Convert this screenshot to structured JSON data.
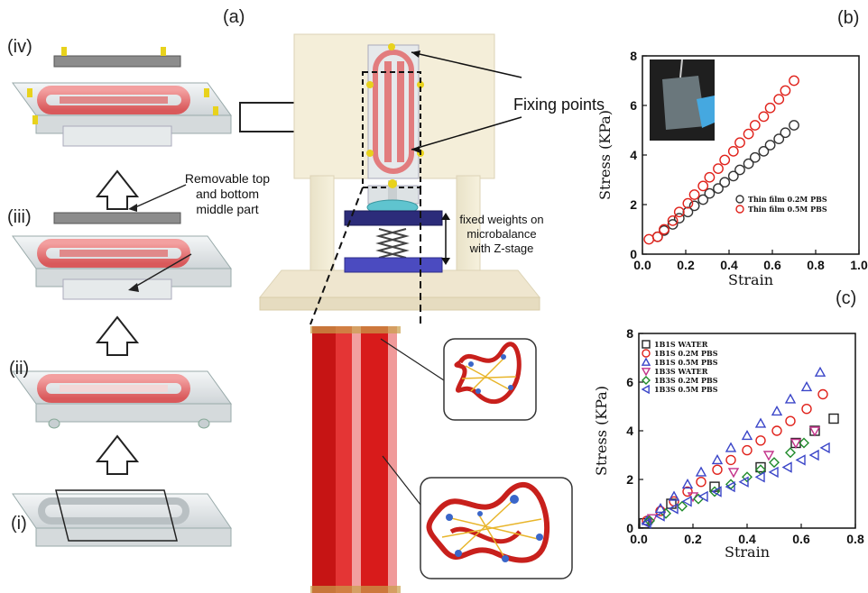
{
  "figure": {
    "panel_a": "(a)",
    "panel_b": "(b)",
    "panel_c": "(c)",
    "steps": [
      "(i)",
      "(ii)",
      "(iii)",
      "(iv)"
    ],
    "removable_note_1": "Removable top",
    "removable_note_2": "and bottom",
    "removable_note_3": "middle part",
    "fixing_points": "Fixing points",
    "weights_1": "fixed weights on",
    "weights_2": "microbalance",
    "weights_3": "with Z-stage"
  },
  "chart_data": [
    {
      "type": "scatter",
      "panel": "(b)",
      "xlabel": "Strain",
      "ylabel": "Stress (KPa)",
      "xlim": [
        0.0,
        1.0
      ],
      "ylim": [
        0,
        8
      ],
      "xticks": [
        "0.0",
        "0.2",
        "0.4",
        "0.6",
        "0.8",
        "1.0"
      ],
      "yticks": [
        "0",
        "2",
        "4",
        "6",
        "8"
      ],
      "legend_position": "bottom-right",
      "series": [
        {
          "name": "Thin film 0.2M PBS",
          "color": "#333333",
          "marker": "circle",
          "x": [
            0.07,
            0.1,
            0.14,
            0.17,
            0.21,
            0.24,
            0.28,
            0.31,
            0.35,
            0.38,
            0.42,
            0.45,
            0.49,
            0.52,
            0.56,
            0.59,
            0.63,
            0.66,
            0.7
          ],
          "y": [
            0.7,
            0.95,
            1.2,
            1.45,
            1.7,
            1.95,
            2.2,
            2.45,
            2.65,
            2.9,
            3.15,
            3.4,
            3.65,
            3.9,
            4.15,
            4.4,
            4.65,
            4.9,
            5.2
          ]
        },
        {
          "name": "Thin film 0.5M PBS",
          "color": "#e0221b",
          "marker": "circle",
          "x": [
            0.03,
            0.07,
            0.1,
            0.14,
            0.17,
            0.21,
            0.24,
            0.28,
            0.31,
            0.35,
            0.38,
            0.42,
            0.45,
            0.49,
            0.52,
            0.56,
            0.59,
            0.63,
            0.66,
            0.7
          ],
          "y": [
            0.6,
            0.7,
            1.0,
            1.35,
            1.7,
            2.05,
            2.4,
            2.75,
            3.1,
            3.45,
            3.8,
            4.15,
            4.5,
            4.85,
            5.2,
            5.55,
            5.9,
            6.25,
            6.6,
            7.0
          ]
        }
      ]
    },
    {
      "type": "scatter",
      "panel": "(c)",
      "xlabel": "Strain",
      "ylabel": "Stress (KPa)",
      "xlim": [
        0.0,
        0.8
      ],
      "ylim": [
        0,
        8
      ],
      "xticks": [
        "0.0",
        "0.2",
        "0.4",
        "0.6",
        "0.8"
      ],
      "yticks": [
        "0",
        "2",
        "4",
        "6",
        "8"
      ],
      "legend_position": "top-left",
      "series": [
        {
          "name": "1B1S WATER",
          "color": "#222222",
          "marker": "square",
          "x": [
            0.02,
            0.12,
            0.28,
            0.45,
            0.58,
            0.65,
            0.72
          ],
          "y": [
            0.2,
            1.0,
            1.7,
            2.5,
            3.5,
            4.0,
            4.5
          ]
        },
        {
          "name": "1B1S 0.2M PBS",
          "color": "#e0221b",
          "marker": "circle",
          "x": [
            0.03,
            0.08,
            0.13,
            0.18,
            0.23,
            0.29,
            0.34,
            0.4,
            0.45,
            0.51,
            0.56,
            0.62,
            0.68
          ],
          "y": [
            0.3,
            0.7,
            1.1,
            1.5,
            1.9,
            2.4,
            2.8,
            3.2,
            3.6,
            4.0,
            4.4,
            4.9,
            5.5
          ]
        },
        {
          "name": "1B1S 0.5M PBS",
          "color": "#3a45c8",
          "marker": "triangle-up",
          "x": [
            0.03,
            0.08,
            0.13,
            0.18,
            0.23,
            0.29,
            0.34,
            0.4,
            0.45,
            0.51,
            0.56,
            0.62,
            0.67
          ],
          "y": [
            0.3,
            0.8,
            1.3,
            1.8,
            2.3,
            2.8,
            3.3,
            3.8,
            4.3,
            4.8,
            5.3,
            5.8,
            6.4
          ]
        },
        {
          "name": "1B3S WATER",
          "color": "#c3338a",
          "marker": "triangle-down",
          "x": [
            0.05,
            0.2,
            0.35,
            0.48,
            0.58,
            0.65
          ],
          "y": [
            0.4,
            1.3,
            2.3,
            3.0,
            3.5,
            4.0
          ]
        },
        {
          "name": "1B3S 0.2M PBS",
          "color": "#1f8a2a",
          "marker": "diamond",
          "x": [
            0.04,
            0.1,
            0.16,
            0.22,
            0.28,
            0.34,
            0.4,
            0.45,
            0.5,
            0.56,
            0.61
          ],
          "y": [
            0.3,
            0.6,
            0.9,
            1.2,
            1.5,
            1.8,
            2.1,
            2.4,
            2.7,
            3.1,
            3.5
          ]
        },
        {
          "name": "1B3S 0.5M PBS",
          "color": "#3a45c8",
          "marker": "triangle-left",
          "x": [
            0.03,
            0.08,
            0.13,
            0.18,
            0.24,
            0.29,
            0.34,
            0.39,
            0.45,
            0.5,
            0.55,
            0.6,
            0.65,
            0.69
          ],
          "y": [
            0.2,
            0.5,
            0.8,
            1.1,
            1.3,
            1.5,
            1.7,
            1.9,
            2.1,
            2.3,
            2.5,
            2.8,
            3.0,
            3.3
          ]
        }
      ]
    }
  ]
}
